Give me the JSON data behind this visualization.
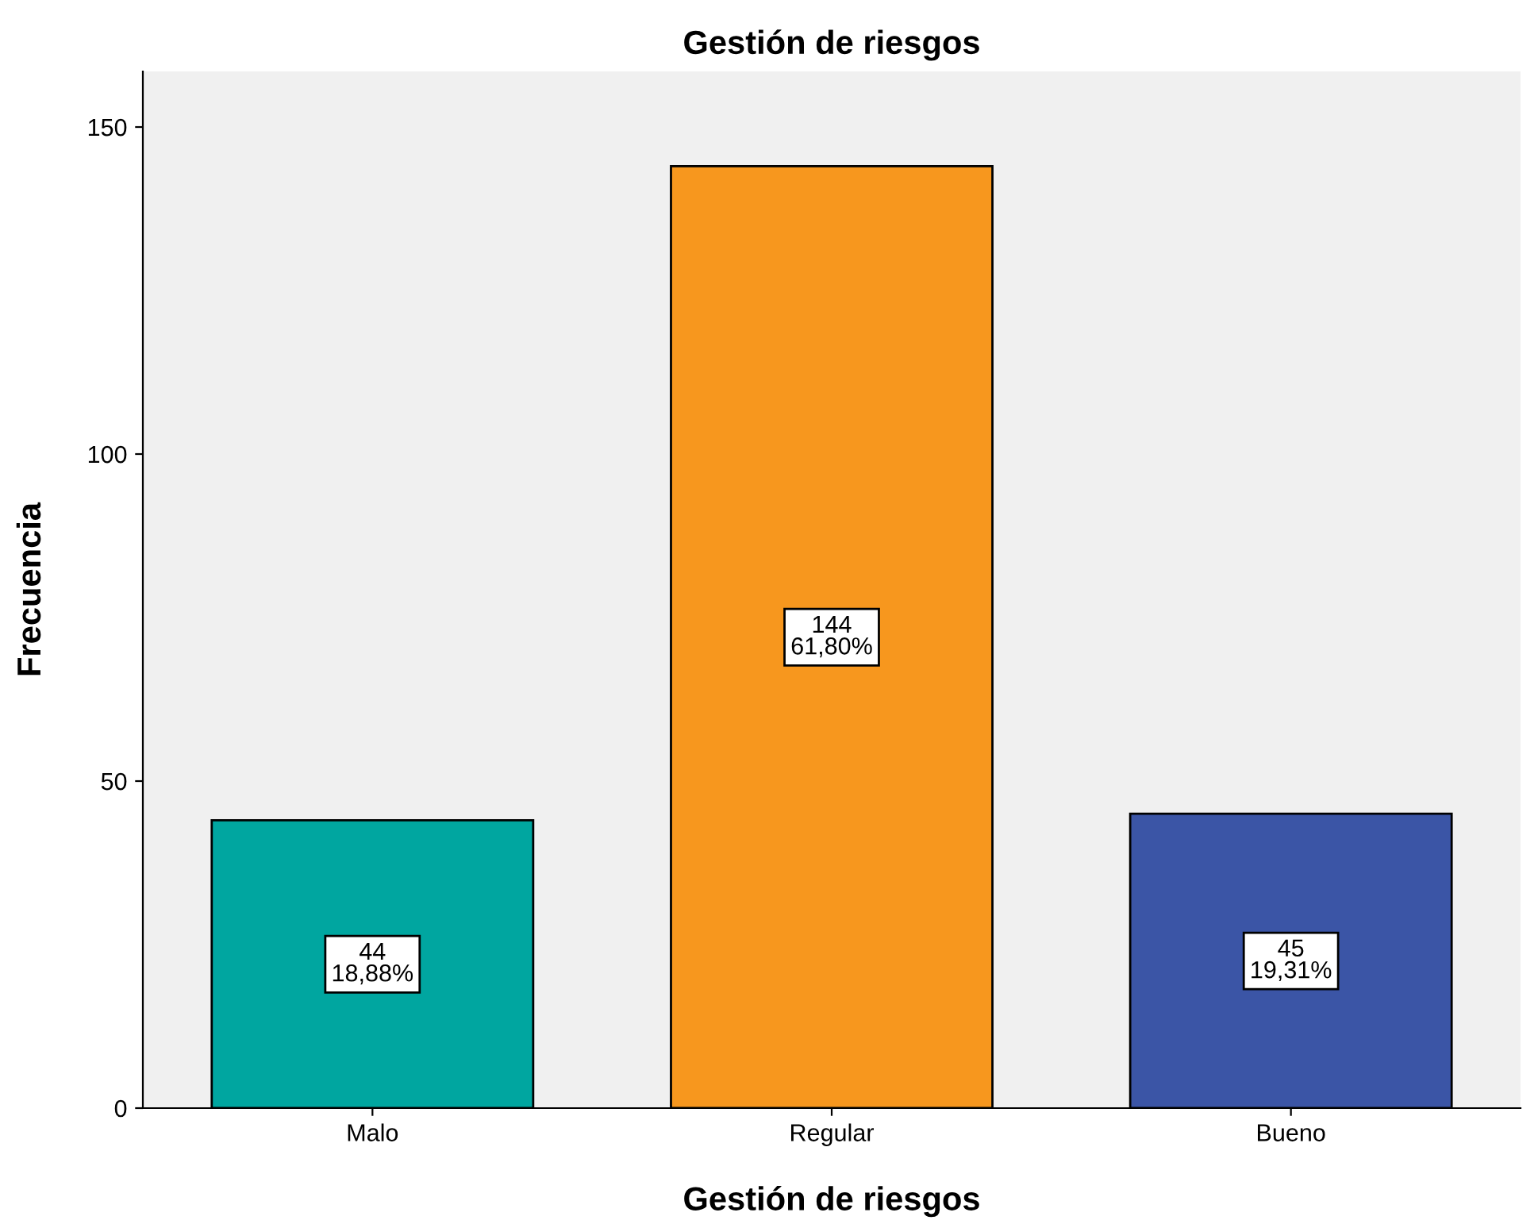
{
  "chart_data": {
    "type": "bar",
    "title": "Gestión de riesgos",
    "xlabel": "Gestión de riesgos",
    "ylabel": "Frecuencia",
    "categories": [
      "Malo",
      "Regular",
      "Bueno"
    ],
    "values": [
      44,
      144,
      45
    ],
    "colors": [
      "#00a6a0",
      "#f7971e",
      "#3b55a6"
    ],
    "value_labels": [
      "44\n18,88%",
      "144\n61,80%",
      "45\n19,31%"
    ],
    "ylim": [
      0,
      158.5
    ],
    "yticks": [
      0,
      50,
      100,
      150
    ],
    "grid": false
  }
}
